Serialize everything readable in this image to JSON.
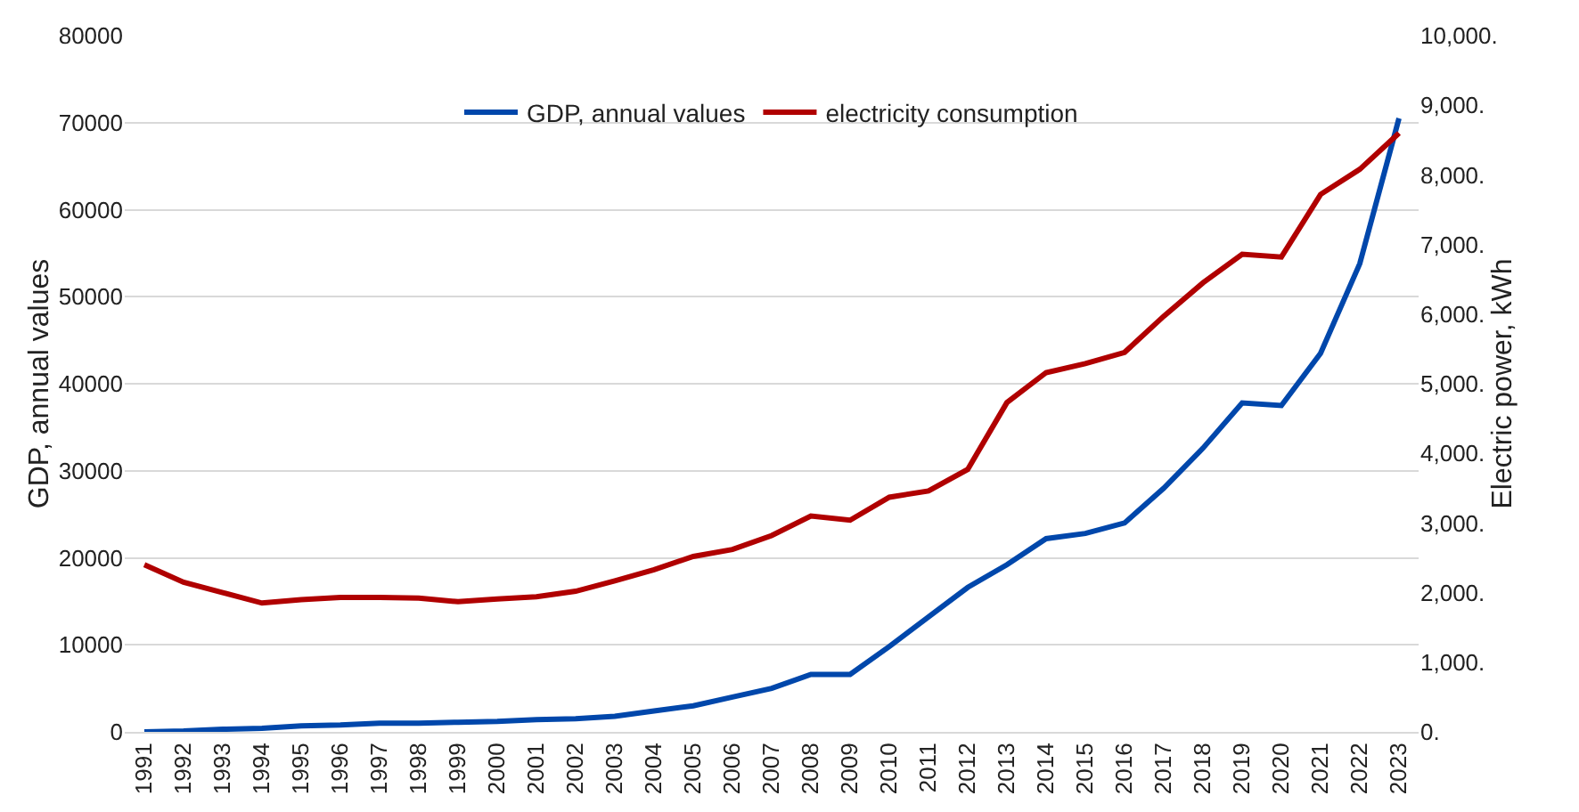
{
  "chart_data": {
    "type": "line",
    "xlabel": null,
    "ylabel": "GDP, annual values",
    "y2label": "Electric power, kWh",
    "categories": [
      "1991",
      "1992",
      "1993",
      "1994",
      "1995",
      "1996",
      "1997",
      "1998",
      "1999",
      "2000",
      "2001",
      "2002",
      "2003",
      "2004",
      "2005",
      "2006",
      "2007",
      "2008",
      "2009",
      "2010",
      "2011",
      "2012",
      "2013",
      "2014",
      "2015",
      "2016",
      "2017",
      "2018",
      "2019",
      "2020",
      "2021",
      "2022",
      "2023"
    ],
    "series": [
      {
        "name": "GDP, annual values",
        "color": "#0047ab",
        "values": [
          0,
          100,
          300,
          400,
          700,
          800,
          1000,
          1000,
          1100,
          1200,
          1400,
          1500,
          1800,
          2400,
          3000,
          4000,
          5000,
          6600,
          6600,
          9800,
          13200,
          16600,
          19200,
          22200,
          22800,
          24000,
          28000,
          32600,
          37800,
          37500,
          43500,
          53800,
          70500
        ]
      },
      {
        "name": "electricity consumption",
        "color": "#b00000",
        "axis": "y2",
        "values": [
          2400,
          2150,
          2000,
          1850,
          1900,
          1930,
          1930,
          1920,
          1870,
          1910,
          1940,
          2020,
          2170,
          2330,
          2520,
          2620,
          2820,
          3100,
          3040,
          3370,
          3460,
          3770,
          4730,
          5160,
          5290,
          5450,
          5970,
          6450,
          6860,
          6820,
          7720,
          8080,
          8600
        ]
      }
    ],
    "ylim": [
      0,
      80000
    ],
    "yticks": [
      0,
      10000,
      20000,
      30000,
      40000,
      50000,
      60000,
      70000,
      80000
    ],
    "y2lim": [
      0,
      10000
    ],
    "y2ticks": [
      {
        "value": 0,
        "label": "0."
      },
      {
        "value": 1000,
        "label": "1,000."
      },
      {
        "value": 2000,
        "label": "2,000."
      },
      {
        "value": 3000,
        "label": "3,000."
      },
      {
        "value": 4000,
        "label": "4,000."
      },
      {
        "value": 5000,
        "label": "5,000."
      },
      {
        "value": 6000,
        "label": "6,000."
      },
      {
        "value": 7000,
        "label": "7,000."
      },
      {
        "value": 8000,
        "label": "8,000."
      },
      {
        "value": 9000,
        "label": "9,000."
      },
      {
        "value": 10000,
        "label": "10,000."
      }
    ],
    "grid": "y",
    "legend": "top",
    "line_style": "solid",
    "marker": "none"
  }
}
